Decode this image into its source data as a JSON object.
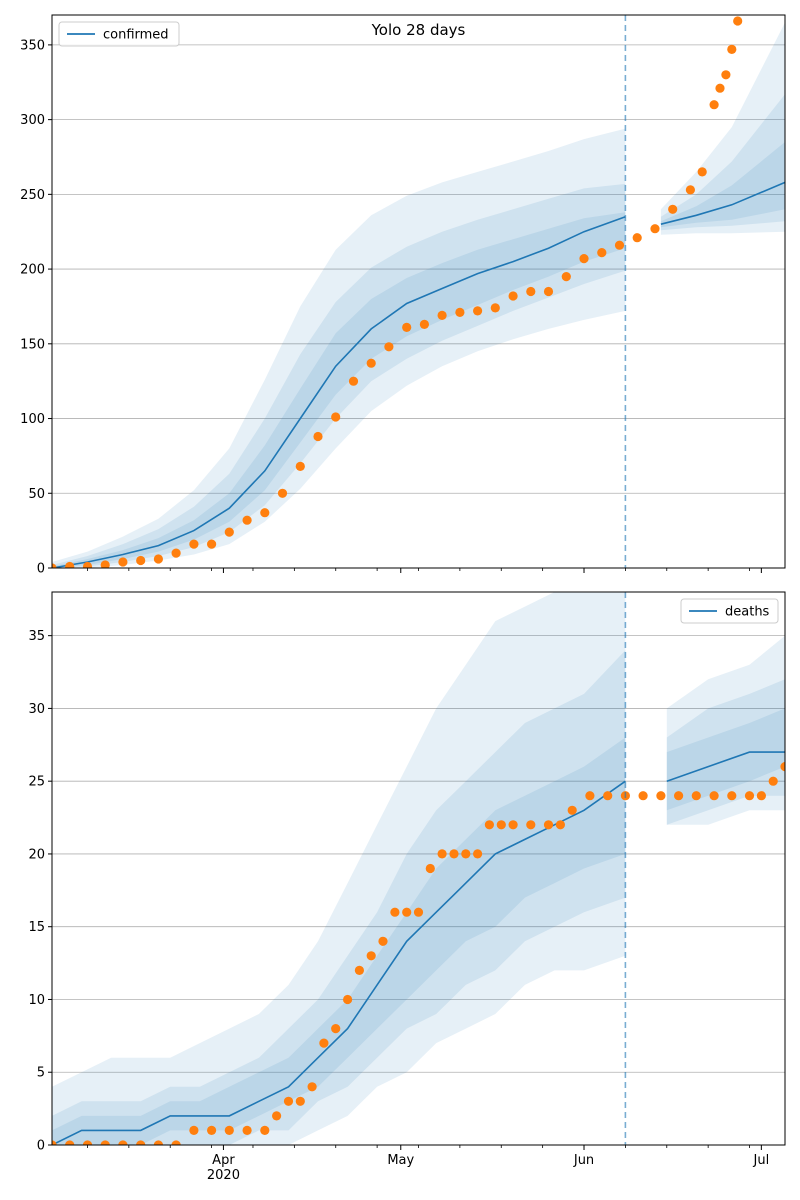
{
  "chart_data": [
    {
      "type": "line",
      "title": "Yolo 28 days",
      "xlabel": "",
      "ylabel": "",
      "xlim": [
        "2020-03-03",
        "2020-07-05"
      ],
      "ylim": [
        0,
        370
      ],
      "yticks": [
        0,
        50,
        100,
        150,
        200,
        250,
        300,
        350
      ],
      "grid": "horizontal",
      "legend": {
        "placement": "top-left",
        "entries": [
          "confirmed"
        ]
      },
      "forecast_start": "2020-06-08",
      "model": {
        "name": "confirmed",
        "color": "#1f77b4",
        "x": [
          "2020-03-03",
          "2020-03-09",
          "2020-03-15",
          "2020-03-21",
          "2020-03-27",
          "2020-04-02",
          "2020-04-08",
          "2020-04-14",
          "2020-04-20",
          "2020-04-26",
          "2020-05-02",
          "2020-05-08",
          "2020-05-14",
          "2020-05-20",
          "2020-05-26",
          "2020-06-01",
          "2020-06-08",
          "2020-06-14",
          "2020-06-20",
          "2020-06-26",
          "2020-07-05"
        ],
        "median": [
          0,
          4,
          9,
          15,
          25,
          40,
          65,
          100,
          135,
          160,
          177,
          187,
          197,
          205,
          214,
          225,
          235,
          230,
          236,
          243,
          258
        ],
        "band_50_lower": [
          0,
          2,
          6,
          11,
          19,
          31,
          52,
          84,
          116,
          140,
          155,
          166,
          176,
          186,
          195,
          205,
          214,
          228,
          231,
          233,
          240
        ],
        "band_50_upper": [
          1,
          6,
          12,
          20,
          32,
          50,
          82,
          120,
          157,
          180,
          194,
          204,
          213,
          220,
          227,
          234,
          238,
          232,
          242,
          256,
          285
        ],
        "band_80_lower": [
          0,
          1,
          4,
          8,
          14,
          24,
          42,
          70,
          100,
          125,
          140,
          152,
          162,
          172,
          181,
          190,
          199,
          226,
          228,
          229,
          232
        ],
        "band_80_upper": [
          2,
          8,
          16,
          26,
          41,
          63,
          100,
          143,
          178,
          201,
          215,
          225,
          233,
          240,
          247,
          254,
          257,
          235,
          250,
          272,
          317
        ],
        "band_95_lower": [
          0,
          0,
          2,
          5,
          9,
          16,
          31,
          53,
          80,
          105,
          122,
          135,
          145,
          153,
          160,
          166,
          172,
          223,
          224,
          224,
          225
        ],
        "band_95_upper": [
          4,
          11,
          21,
          33,
          52,
          80,
          126,
          175,
          213,
          236,
          249,
          258,
          265,
          272,
          279,
          287,
          294,
          240,
          265,
          295,
          365
        ]
      },
      "observed": {
        "color": "#ff7f0e",
        "x": [
          "2020-03-03",
          "2020-03-06",
          "2020-03-09",
          "2020-03-12",
          "2020-03-15",
          "2020-03-18",
          "2020-03-21",
          "2020-03-24",
          "2020-03-27",
          "2020-03-30",
          "2020-04-02",
          "2020-04-05",
          "2020-04-08",
          "2020-04-11",
          "2020-04-14",
          "2020-04-17",
          "2020-04-20",
          "2020-04-23",
          "2020-04-26",
          "2020-04-29",
          "2020-05-02",
          "2020-05-05",
          "2020-05-08",
          "2020-05-11",
          "2020-05-14",
          "2020-05-17",
          "2020-05-20",
          "2020-05-23",
          "2020-05-26",
          "2020-05-29",
          "2020-06-01",
          "2020-06-04",
          "2020-06-07",
          "2020-06-10",
          "2020-06-13",
          "2020-06-16",
          "2020-06-19",
          "2020-06-21",
          "2020-06-23",
          "2020-06-24",
          "2020-06-25",
          "2020-06-26",
          "2020-06-27"
        ],
        "y": [
          0,
          1,
          1,
          2,
          4,
          5,
          6,
          10,
          16,
          16,
          24,
          32,
          37,
          50,
          68,
          88,
          101,
          125,
          137,
          148,
          161,
          163,
          169,
          171,
          172,
          174,
          182,
          185,
          185,
          195,
          207,
          211,
          216,
          221,
          227,
          240,
          253,
          265,
          310,
          321,
          330,
          347,
          366
        ]
      }
    },
    {
      "type": "line",
      "title": "",
      "xlabel": "",
      "ylabel": "",
      "xlim": [
        "2020-03-03",
        "2020-07-05"
      ],
      "ylim": [
        0,
        38
      ],
      "yticks": [
        0,
        5,
        10,
        15,
        20,
        25,
        30,
        35
      ],
      "xticks": [
        "Apr\n2020",
        "May",
        "Jun",
        "Jul"
      ],
      "grid": "horizontal",
      "legend": {
        "placement": "top-right",
        "entries": [
          "deaths"
        ]
      },
      "forecast_start": "2020-06-08",
      "model": {
        "name": "deaths",
        "color": "#1f77b4",
        "x": [
          "2020-03-03",
          "2020-03-08",
          "2020-03-13",
          "2020-03-18",
          "2020-03-23",
          "2020-03-28",
          "2020-04-02",
          "2020-04-07",
          "2020-04-12",
          "2020-04-17",
          "2020-04-22",
          "2020-04-27",
          "2020-05-02",
          "2020-05-07",
          "2020-05-12",
          "2020-05-17",
          "2020-05-22",
          "2020-05-27",
          "2020-06-01",
          "2020-06-08",
          "2020-06-15",
          "2020-06-22",
          "2020-06-29",
          "2020-07-05"
        ],
        "median": [
          0,
          1,
          1,
          1,
          2,
          2,
          2,
          3,
          4,
          6,
          8,
          11,
          14,
          16,
          18,
          20,
          21,
          22,
          23,
          25,
          25,
          26,
          27,
          27
        ],
        "band_50_lower": [
          0,
          0,
          0,
          0,
          1,
          1,
          1,
          2,
          3,
          4,
          6,
          8,
          10,
          12,
          14,
          15,
          17,
          18,
          19,
          20,
          23,
          24,
          25,
          26
        ],
        "band_50_upper": [
          1,
          2,
          2,
          2,
          3,
          3,
          4,
          5,
          6,
          8,
          10,
          13,
          16,
          19,
          21,
          23,
          24,
          25,
          26,
          28,
          27,
          28,
          29,
          30
        ],
        "band_80_lower": [
          0,
          0,
          0,
          0,
          0,
          0,
          0,
          1,
          1,
          3,
          4,
          6,
          8,
          9,
          11,
          12,
          14,
          15,
          16,
          17,
          22,
          23,
          24,
          24
        ],
        "band_80_upper": [
          2,
          3,
          3,
          3,
          4,
          4,
          5,
          6,
          8,
          10,
          13,
          16,
          20,
          23,
          25,
          27,
          29,
          30,
          31,
          34,
          28,
          30,
          31,
          32
        ],
        "band_95_lower": [
          0,
          0,
          0,
          0,
          0,
          0,
          0,
          0,
          0,
          1,
          2,
          4,
          5,
          7,
          8,
          9,
          11,
          12,
          12,
          13,
          22,
          22,
          23,
          23
        ],
        "band_95_upper": [
          4,
          5,
          6,
          6,
          6,
          7,
          8,
          9,
          11,
          14,
          18,
          22,
          26,
          30,
          33,
          36,
          37,
          38,
          38,
          38,
          30,
          32,
          33,
          35
        ]
      },
      "observed": {
        "color": "#ff7f0e",
        "x": [
          "2020-03-03",
          "2020-03-06",
          "2020-03-09",
          "2020-03-12",
          "2020-03-15",
          "2020-03-18",
          "2020-03-21",
          "2020-03-24",
          "2020-03-27",
          "2020-03-30",
          "2020-04-02",
          "2020-04-05",
          "2020-04-08",
          "2020-04-10",
          "2020-04-12",
          "2020-04-14",
          "2020-04-16",
          "2020-04-18",
          "2020-04-20",
          "2020-04-22",
          "2020-04-24",
          "2020-04-26",
          "2020-04-28",
          "2020-04-30",
          "2020-05-02",
          "2020-05-04",
          "2020-05-06",
          "2020-05-08",
          "2020-05-10",
          "2020-05-12",
          "2020-05-14",
          "2020-05-16",
          "2020-05-18",
          "2020-05-20",
          "2020-05-23",
          "2020-05-26",
          "2020-05-28",
          "2020-05-30",
          "2020-06-02",
          "2020-06-05",
          "2020-06-08",
          "2020-06-11",
          "2020-06-14",
          "2020-06-17",
          "2020-06-20",
          "2020-06-23",
          "2020-06-26",
          "2020-06-29",
          "2020-07-01",
          "2020-07-03",
          "2020-07-05"
        ],
        "y": [
          0,
          0,
          0,
          0,
          0,
          0,
          0,
          0,
          1,
          1,
          1,
          1,
          1,
          2,
          3,
          3,
          4,
          7,
          8,
          10,
          12,
          13,
          14,
          16,
          16,
          16,
          19,
          20,
          20,
          20,
          20,
          22,
          22,
          22,
          22,
          22,
          22,
          23,
          24,
          24,
          24,
          24,
          24,
          24,
          24,
          24,
          24,
          24,
          24,
          25,
          26
        ]
      }
    }
  ]
}
